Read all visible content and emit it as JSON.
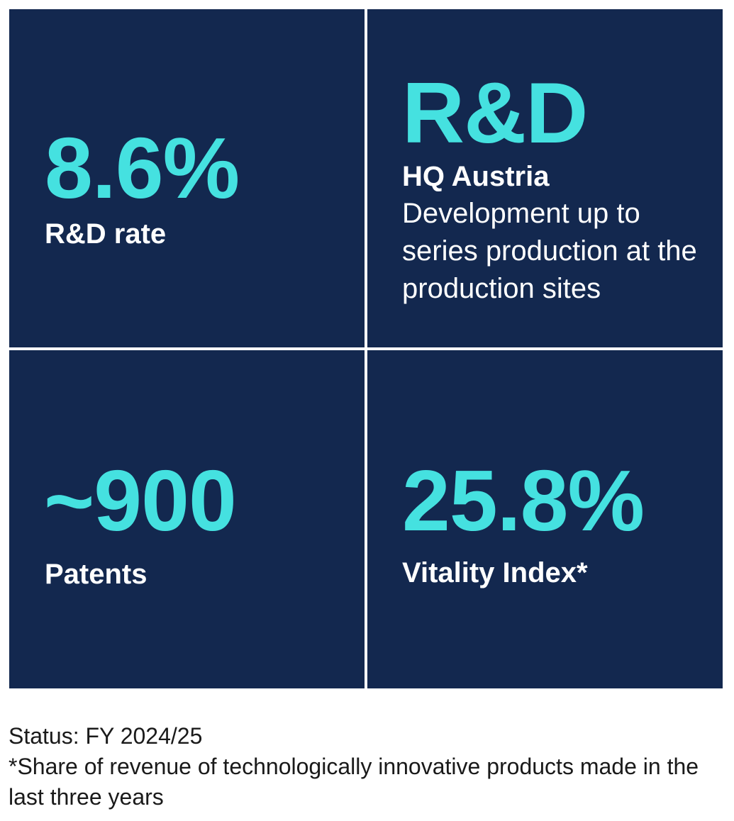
{
  "tiles": [
    {
      "value": "8.6%",
      "label": "R&D rate"
    },
    {
      "value": "R&D",
      "label": "HQ Austria",
      "description": "Development up to series production at the production sites"
    },
    {
      "value": "~900",
      "label": "Patents"
    },
    {
      "value": "25.8%",
      "label": "Vitality Index*"
    }
  ],
  "footer": {
    "status": "Status: FY 2024/25",
    "footnote": "*Share of revenue of technologically innovative products made in the last three years"
  },
  "colors": {
    "tile_background": "#13284f",
    "accent": "#45e1e0",
    "tile_text": "#ffffff"
  }
}
